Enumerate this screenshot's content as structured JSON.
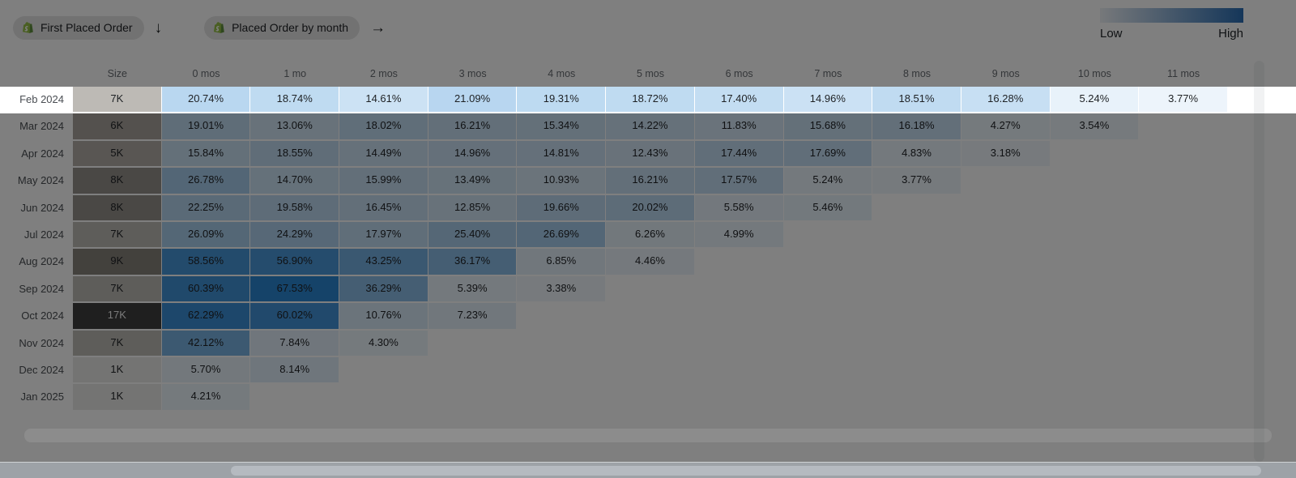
{
  "toolbar": {
    "metric_pill": {
      "label": "First Placed Order",
      "icon": "shopify-icon"
    },
    "return_pill": {
      "label": "Placed Order by month",
      "icon": "shopify-icon"
    },
    "down_arrow": "↓",
    "right_arrow": "→"
  },
  "legend": {
    "low_label": "Low",
    "high_label": "High",
    "low_color": "#eef2f6",
    "high_color": "#2a6db3"
  },
  "chart_data": {
    "type": "heatmap",
    "corner_header": "",
    "size_header": "Size",
    "x_categories": [
      "0 mos",
      "1 mo",
      "2 mos",
      "3 mos",
      "4 mos",
      "5 mos",
      "6 mos",
      "7 mos",
      "8 mos",
      "9 mos",
      "10 mos",
      "11 mos"
    ],
    "value_format": "percent_2dp",
    "max_value": 67.53,
    "heat_low_color": "#f8fbfd",
    "heat_high_color": "#2b86d3",
    "size_colors": {
      "1": "#e9e8e6",
      "5": "#b2ada7",
      "6": "#a8a39c",
      "7": "#bdbab5",
      "8": "#94908a",
      "9": "#87827b",
      "17": "#3e3e3e"
    },
    "highlighted_row": "Feb 2024",
    "rows": [
      {
        "label": "Feb 2024",
        "size": "7K",
        "size_k": 7,
        "values": [
          20.74,
          18.74,
          14.61,
          21.09,
          19.31,
          18.72,
          17.4,
          14.96,
          18.51,
          16.28,
          5.24,
          3.77
        ]
      },
      {
        "label": "Mar 2024",
        "size": "6K",
        "size_k": 6,
        "values": [
          19.01,
          13.06,
          18.02,
          16.21,
          15.34,
          14.22,
          11.83,
          15.68,
          16.18,
          4.27,
          3.54
        ]
      },
      {
        "label": "Apr 2024",
        "size": "5K",
        "size_k": 5,
        "values": [
          15.84,
          18.55,
          14.49,
          14.96,
          14.81,
          12.43,
          17.44,
          17.69,
          4.83,
          3.18
        ]
      },
      {
        "label": "May 2024",
        "size": "8K",
        "size_k": 8,
        "values": [
          26.78,
          14.7,
          15.99,
          13.49,
          10.93,
          16.21,
          17.57,
          5.24,
          3.77
        ]
      },
      {
        "label": "Jun 2024",
        "size": "8K",
        "size_k": 8,
        "values": [
          22.25,
          19.58,
          16.45,
          12.85,
          19.66,
          20.02,
          5.58,
          5.46
        ]
      },
      {
        "label": "Jul 2024",
        "size": "7K",
        "size_k": 7,
        "values": [
          26.09,
          24.29,
          17.97,
          25.4,
          26.69,
          6.26,
          4.99
        ]
      },
      {
        "label": "Aug 2024",
        "size": "9K",
        "size_k": 9,
        "values": [
          58.56,
          56.9,
          43.25,
          36.17,
          6.85,
          4.46
        ]
      },
      {
        "label": "Sep 2024",
        "size": "7K",
        "size_k": 7,
        "values": [
          60.39,
          67.53,
          36.29,
          5.39,
          3.38
        ]
      },
      {
        "label": "Oct 2024",
        "size": "17K",
        "size_k": 17,
        "values": [
          62.29,
          60.02,
          10.76,
          7.23
        ]
      },
      {
        "label": "Nov 2024",
        "size": "7K",
        "size_k": 7,
        "values": [
          42.12,
          7.84,
          4.3
        ]
      },
      {
        "label": "Dec 2024",
        "size": "1K",
        "size_k": 1,
        "values": [
          5.7,
          8.14
        ]
      },
      {
        "label": "Jan 2025",
        "size": "1K",
        "size_k": 1,
        "values": [
          4.21
        ]
      }
    ]
  }
}
